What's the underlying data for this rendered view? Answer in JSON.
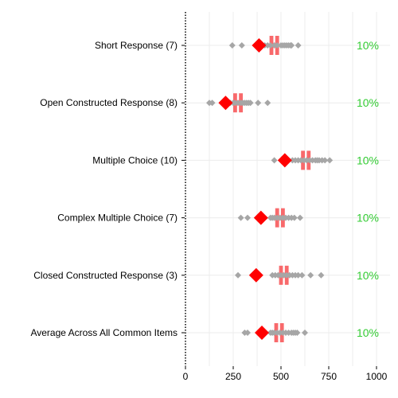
{
  "chart_data": {
    "type": "scatter",
    "title": "",
    "xlabel": "",
    "ylabel": "",
    "xlim": [
      0,
      1000
    ],
    "x_ticks": [
      0,
      250,
      500,
      750,
      1000
    ],
    "grid": true,
    "colors": {
      "average_marker": "#ff0000",
      "range_box": "#f8696b",
      "item_points": "#a6a6a6",
      "percent_text": "#33cc33",
      "grid": "#ececec",
      "axis": "#000000"
    },
    "categories": [
      {
        "label": "Short Response (7)",
        "average": 385,
        "box_ranges": [
          [
            440,
            460
          ],
          [
            470,
            490
          ]
        ],
        "points": [
          245,
          295,
          415,
          430,
          445,
          465,
          480,
          500,
          510,
          520,
          530,
          540,
          550,
          555,
          590
        ],
        "percent": "10%"
      },
      {
        "label": "Open Constructed Response (8)",
        "average": 210,
        "box_ranges": [
          [
            250,
            270
          ],
          [
            280,
            300
          ]
        ],
        "points": [
          125,
          140,
          235,
          250,
          260,
          275,
          290,
          300,
          310,
          320,
          330,
          340,
          380,
          430
        ],
        "percent": "10%"
      },
      {
        "label": "Multiple Choice (10)",
        "average": 520,
        "box_ranges": [
          [
            605,
            625
          ],
          [
            635,
            655
          ]
        ],
        "points": [
          465,
          560,
          575,
          590,
          605,
          620,
          635,
          650,
          665,
          680,
          690,
          700,
          715,
          730,
          755
        ],
        "percent": "10%"
      },
      {
        "label": "Complex Multiple Choice (7)",
        "average": 395,
        "box_ranges": [
          [
            470,
            490
          ],
          [
            500,
            520
          ]
        ],
        "points": [
          290,
          325,
          445,
          455,
          465,
          480,
          495,
          510,
          525,
          540,
          555,
          570,
          600
        ],
        "percent": "10%"
      },
      {
        "label": "Closed Constructed Response (3)",
        "average": 370,
        "box_ranges": [
          [
            490,
            510
          ],
          [
            520,
            540
          ]
        ],
        "points": [
          275,
          455,
          470,
          485,
          500,
          515,
          530,
          545,
          560,
          575,
          590,
          610,
          655,
          710
        ],
        "percent": "10%"
      },
      {
        "label": "Average Across All Common Items",
        "average": 400,
        "box_ranges": [
          [
            465,
            485
          ],
          [
            495,
            515
          ]
        ],
        "points": [
          310,
          325,
          445,
          455,
          465,
          480,
          495,
          510,
          525,
          540,
          555,
          565,
          575,
          585,
          625
        ],
        "percent": "10%"
      }
    ]
  }
}
